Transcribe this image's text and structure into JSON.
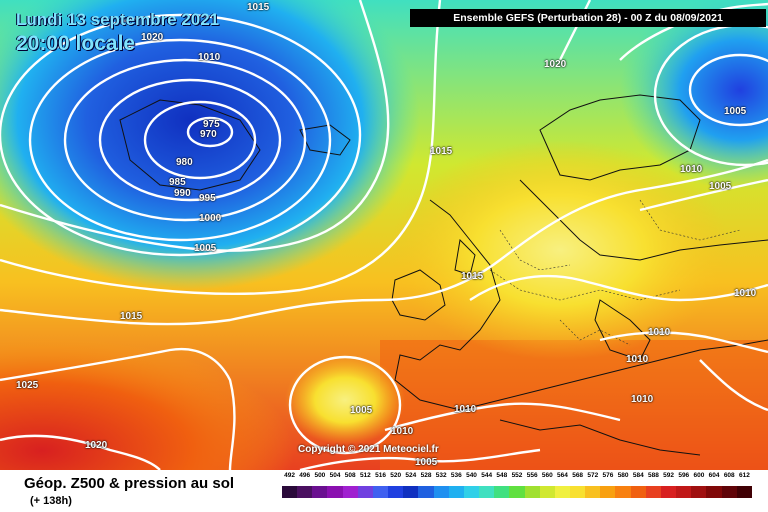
{
  "header": {
    "date_line1": "Lundi 13 septembre 2021",
    "date_line2": "20:00 locale",
    "title": "Ensemble GEFS  (Perturbation 28)  -  00 Z du 08/09/2021"
  },
  "map": {
    "copyright": "Copyright © 2021 Meteociel.fr",
    "isobar_labels": [
      "1015",
      "1020",
      "1010",
      "975",
      "970",
      "980",
      "985",
      "990",
      "995",
      "1000",
      "1005",
      "1015",
      "1020",
      "1010",
      "1005",
      "1010",
      "1005",
      "1015",
      "1015",
      "1010",
      "1010",
      "1025",
      "1005",
      "1020",
      "1010",
      "1005",
      "1010",
      "1010"
    ],
    "colors": {
      "low_center": "#1030c0",
      "high_band": "#f04020",
      "contour": "#ffffff"
    }
  },
  "footer": {
    "caption": "Géop. Z500 & pression au sol",
    "lead_time": "(+ 138h)"
  },
  "legend": {
    "ticks": [
      "492",
      "496",
      "500",
      "504",
      "508",
      "512",
      "516",
      "520",
      "524",
      "528",
      "532",
      "536",
      "540",
      "544",
      "548",
      "552",
      "556",
      "560",
      "564",
      "568",
      "572",
      "576",
      "580",
      "584",
      "588",
      "592",
      "596",
      "600",
      "604",
      "608",
      "612"
    ],
    "colors": [
      "#2a0a3a",
      "#4a1060",
      "#6a1090",
      "#8a10b0",
      "#a020d0",
      "#7040e0",
      "#4060f0",
      "#2040e0",
      "#1030c0",
      "#2060e0",
      "#2090f0",
      "#20b0f0",
      "#30d0e8",
      "#40e0c0",
      "#40e080",
      "#60e040",
      "#a0e030",
      "#d0e830",
      "#f0f040",
      "#f8e030",
      "#f8c020",
      "#f8a010",
      "#f88010",
      "#f06010",
      "#e84020",
      "#d82020",
      "#c01818",
      "#a01010",
      "#800808",
      "#600408",
      "#400004"
    ]
  }
}
